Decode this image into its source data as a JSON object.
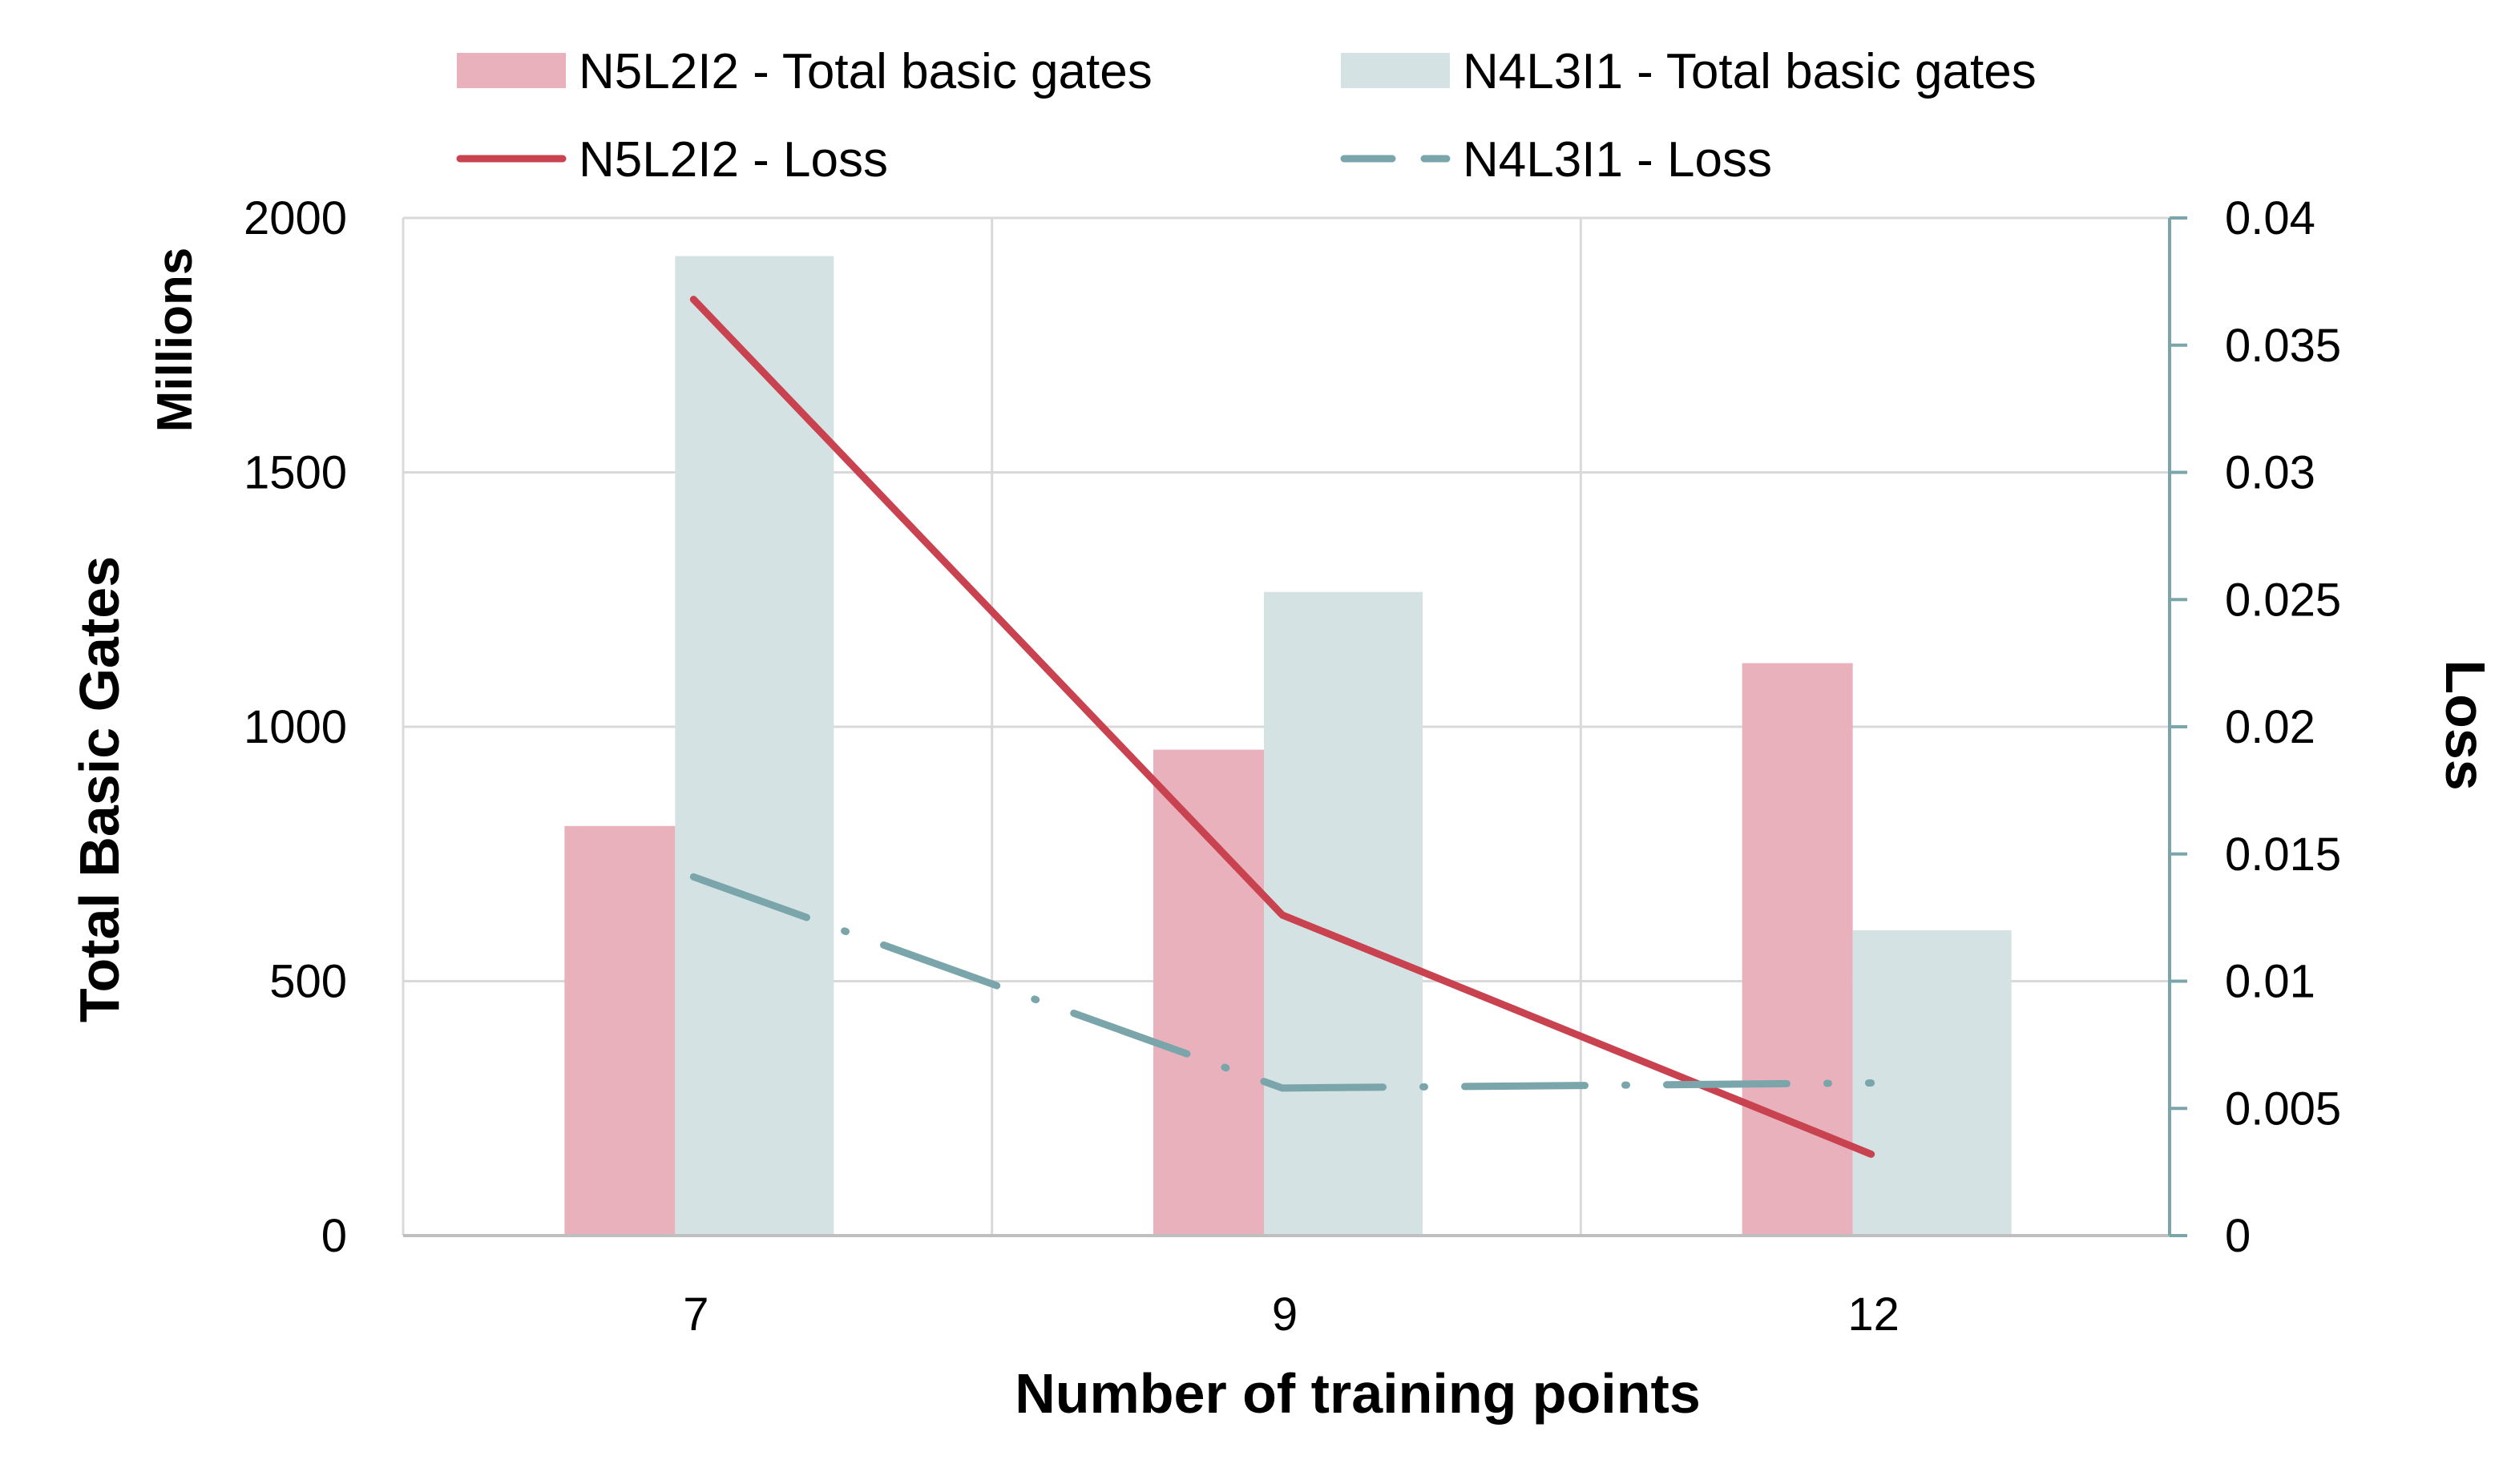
{
  "chart_data": {
    "type": "bar",
    "title": "",
    "categories": [
      "7",
      "9",
      "12"
    ],
    "xlabel": "Number of training points",
    "ylabel": "Total Basic Gates",
    "ylabel_unit": "Millions",
    "y2label": "Loss",
    "ylim": [
      0,
      2000
    ],
    "y2lim": [
      0,
      0.04
    ],
    "yticks": [
      "0",
      "500",
      "1000",
      "1500",
      "2000"
    ],
    "y2ticks": [
      "0",
      "0.005",
      "0.01",
      "0.015",
      "0.02",
      "0.025",
      "0.03",
      "0.035",
      "0.04"
    ],
    "grid": true,
    "legend_position": "top",
    "series": [
      {
        "name": "N5L2I2 - Total basic gates",
        "kind": "bar",
        "axis": "left",
        "color": "#e8b1bb",
        "values": [
          805,
          955,
          1125
        ]
      },
      {
        "name": "N4L3I1 - Total basic gates",
        "kind": "bar",
        "axis": "left",
        "color": "#d4e2e3",
        "values": [
          1925,
          1265,
          600
        ]
      },
      {
        "name": "N5L2I2 - Loss",
        "kind": "line",
        "axis": "right",
        "color": "#c8424f",
        "line_style": "solid",
        "values": [
          0.0368,
          0.0126,
          0.0032
        ]
      },
      {
        "name": "N4L3I1 - Loss",
        "kind": "line",
        "axis": "right",
        "color": "#7aa6ab",
        "line_style": "dash-dot",
        "values": [
          0.0141,
          0.0058,
          0.006
        ]
      }
    ]
  }
}
